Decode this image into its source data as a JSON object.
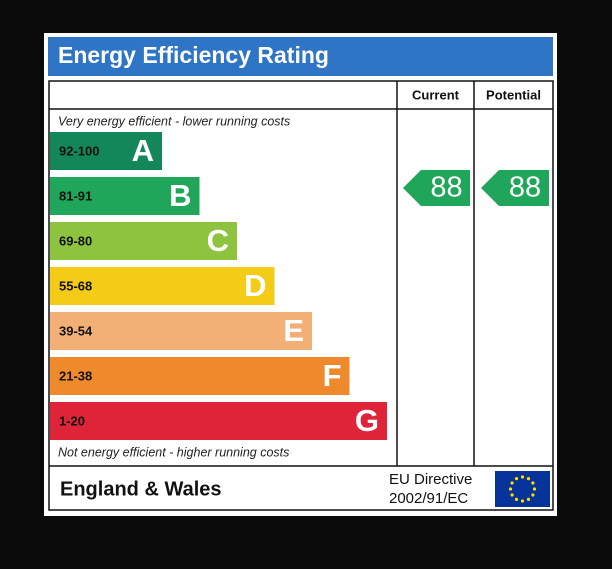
{
  "header": {
    "title": "Energy Efficiency Rating"
  },
  "columns": [
    "Current",
    "Potential"
  ],
  "top_note": "Very energy efficient - lower running costs",
  "bottom_note": "Not energy efficient - higher running costs",
  "bands": [
    {
      "range": "92-100",
      "letter": "A",
      "color": "#13875a"
    },
    {
      "range": "81-91",
      "letter": "B",
      "color": "#1fa65a"
    },
    {
      "range": "69-80",
      "letter": "C",
      "color": "#8dc33f"
    },
    {
      "range": "55-68",
      "letter": "D",
      "color": "#f4cb17"
    },
    {
      "range": "39-54",
      "letter": "E",
      "color": "#f2b076"
    },
    {
      "range": "21-38",
      "letter": "F",
      "color": "#ee892c"
    },
    {
      "range": "1-20",
      "letter": "G",
      "color": "#df2339"
    }
  ],
  "ratings": {
    "current": 88,
    "potential": 88,
    "color": "#1fa65a"
  },
  "footer": {
    "region": "England & Wales",
    "directive": [
      "EU Directive",
      "2002/91/EC"
    ]
  }
}
